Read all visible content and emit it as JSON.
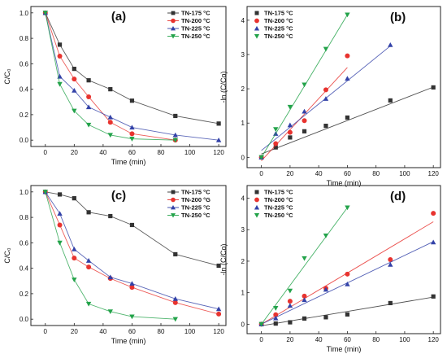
{
  "chart_data": [
    {
      "panel_label": "(a)",
      "type": "line",
      "xlabel": "Time (min)",
      "ylabel": "C/C₀",
      "xlim": [
        -10,
        125
      ],
      "ylim": [
        -0.05,
        1.05
      ],
      "xticks": [
        0,
        20,
        40,
        60,
        80,
        100,
        120
      ],
      "yticks": [
        0.0,
        0.2,
        0.4,
        0.6,
        0.8,
        1.0
      ],
      "tick_decimals": 1,
      "legend_position": "top-right",
      "series": [
        {
          "name": "TN-175 °C",
          "color": "#333333",
          "marker": "square",
          "x": [
            0,
            10,
            20,
            30,
            45,
            60,
            90,
            120
          ],
          "y": [
            1.0,
            0.75,
            0.56,
            0.47,
            0.4,
            0.31,
            0.19,
            0.13
          ]
        },
        {
          "name": "TN-200 °C",
          "color": "#e8332f",
          "marker": "circle",
          "x": [
            0,
            10,
            20,
            30,
            45,
            60,
            90
          ],
          "y": [
            1.0,
            0.66,
            0.48,
            0.34,
            0.14,
            0.05,
            0.0
          ]
        },
        {
          "name": "TN-225 °C",
          "color": "#3342a8",
          "marker": "triangle-up",
          "x": [
            0,
            10,
            20,
            30,
            45,
            60,
            90,
            120
          ],
          "y": [
            1.0,
            0.5,
            0.39,
            0.26,
            0.18,
            0.1,
            0.04,
            0.0
          ]
        },
        {
          "name": "TN-250 °C",
          "color": "#23a34a",
          "marker": "triangle-down",
          "x": [
            0,
            10,
            20,
            30,
            45,
            60,
            90
          ],
          "y": [
            1.0,
            0.44,
            0.23,
            0.12,
            0.04,
            0.01,
            0.0
          ]
        }
      ]
    },
    {
      "panel_label": "(b)",
      "type": "scatter",
      "xlabel": "Time (min)",
      "ylabel": "-ln (C/Co)",
      "xlim": [
        -10,
        125
      ],
      "ylim": [
        -0.3,
        4.4
      ],
      "xticks": [
        0,
        20,
        40,
        60,
        80,
        100,
        120
      ],
      "yticks": [
        0,
        1,
        2,
        3,
        4
      ],
      "tick_decimals": 0,
      "legend_position": "top-left",
      "series": [
        {
          "name": "TN-175 °C",
          "color": "#333333",
          "marker": "square",
          "x": [
            0,
            10,
            20,
            30,
            45,
            60,
            90,
            120
          ],
          "y": [
            0.0,
            0.29,
            0.58,
            0.76,
            0.92,
            1.16,
            1.66,
            2.04
          ],
          "fit": [
            [
              0,
              0.1
            ],
            [
              120,
              2.05
            ]
          ]
        },
        {
          "name": "TN-200 °C",
          "color": "#e8332f",
          "marker": "circle",
          "x": [
            0,
            10,
            20,
            30,
            45,
            60
          ],
          "y": [
            0.0,
            0.4,
            0.73,
            1.07,
            1.97,
            2.96
          ],
          "fit": [
            [
              0,
              -0.1
            ],
            [
              60,
              2.62
            ]
          ]
        },
        {
          "name": "TN-225 °C",
          "color": "#3342a8",
          "marker": "triangle-up",
          "x": [
            0,
            10,
            20,
            30,
            45,
            60,
            90
          ],
          "y": [
            0.0,
            0.69,
            0.94,
            1.34,
            1.71,
            2.3,
            3.28
          ],
          "fit": [
            [
              0,
              0.2
            ],
            [
              90,
              3.25
            ]
          ]
        },
        {
          "name": "TN-250 °C",
          "color": "#23a34a",
          "marker": "triangle-down",
          "x": [
            0,
            10,
            20,
            30,
            45,
            60
          ],
          "y": [
            0.0,
            0.82,
            1.47,
            2.12,
            3.16,
            4.16
          ],
          "fit": [
            [
              0,
              0.0
            ],
            [
              60,
              4.16
            ]
          ]
        }
      ]
    },
    {
      "panel_label": "(c)",
      "type": "line",
      "xlabel": "Time (min)",
      "ylabel": "C/C₀",
      "xlim": [
        -10,
        125
      ],
      "ylim": [
        -0.05,
        1.05
      ],
      "xticks": [
        0,
        20,
        40,
        60,
        80,
        100,
        120
      ],
      "yticks": [
        0.0,
        0.2,
        0.4,
        0.6,
        0.8,
        1.0
      ],
      "tick_decimals": 1,
      "legend_position": "top-right",
      "series": [
        {
          "name": "TN-175 °C",
          "color": "#333333",
          "marker": "square",
          "x": [
            0,
            10,
            20,
            30,
            45,
            60,
            90,
            120
          ],
          "y": [
            1.0,
            0.98,
            0.95,
            0.84,
            0.81,
            0.74,
            0.51,
            0.42
          ]
        },
        {
          "name": "TN-200 °G",
          "color": "#e8332f",
          "marker": "circle",
          "x": [
            0,
            10,
            20,
            30,
            45,
            60,
            90,
            120
          ],
          "y": [
            1.0,
            0.74,
            0.48,
            0.41,
            0.32,
            0.25,
            0.13,
            0.04
          ]
        },
        {
          "name": "TN-225 °C",
          "color": "#3342a8",
          "marker": "triangle-up",
          "x": [
            0,
            10,
            20,
            30,
            45,
            60,
            90,
            120
          ],
          "y": [
            1.0,
            0.83,
            0.55,
            0.46,
            0.33,
            0.28,
            0.16,
            0.08
          ]
        },
        {
          "name": "TN-250 °C",
          "color": "#23a34a",
          "marker": "triangle-down",
          "x": [
            0,
            10,
            20,
            30,
            45,
            60,
            90
          ],
          "y": [
            1.0,
            0.6,
            0.31,
            0.12,
            0.06,
            0.02,
            0.0
          ]
        }
      ]
    },
    {
      "panel_label": "(d)",
      "type": "scatter",
      "xlabel": "Time (min)",
      "ylabel": "-ln (C/Co)",
      "xlim": [
        -10,
        125
      ],
      "ylim": [
        -0.3,
        4.4
      ],
      "xticks": [
        0,
        20,
        40,
        60,
        80,
        100,
        120
      ],
      "yticks": [
        0,
        1,
        2,
        3,
        4
      ],
      "tick_decimals": 0,
      "legend_position": "top-left",
      "series": [
        {
          "name": "TN-175 °C",
          "color": "#333333",
          "marker": "square",
          "x": [
            0,
            10,
            20,
            30,
            45,
            60,
            90,
            120
          ],
          "y": [
            0.0,
            0.02,
            0.06,
            0.18,
            0.22,
            0.31,
            0.67,
            0.88
          ],
          "fit": [
            [
              0,
              -0.05
            ],
            [
              120,
              0.86
            ]
          ]
        },
        {
          "name": "TN-200 °C",
          "color": "#e8332f",
          "marker": "circle",
          "x": [
            0,
            10,
            20,
            30,
            45,
            60,
            90,
            120
          ],
          "y": [
            0.0,
            0.3,
            0.73,
            0.89,
            1.14,
            1.59,
            2.05,
            3.52
          ],
          "fit": [
            [
              0,
              0.0
            ],
            [
              120,
              3.25
            ]
          ]
        },
        {
          "name": "TN-225 °C",
          "color": "#3342a8",
          "marker": "triangle-up",
          "x": [
            0,
            10,
            20,
            30,
            45,
            60,
            90,
            120
          ],
          "y": [
            0.0,
            0.19,
            0.59,
            0.77,
            1.1,
            1.27,
            1.89,
            2.6
          ],
          "fit": [
            [
              0,
              0.0
            ],
            [
              120,
              2.62
            ]
          ]
        },
        {
          "name": "TN-250 °C",
          "color": "#23a34a",
          "marker": "triangle-down",
          "x": [
            0,
            10,
            20,
            30,
            45,
            60
          ],
          "y": [
            0.0,
            0.51,
            1.06,
            2.09,
            2.81,
            3.7
          ],
          "fit": [
            [
              0,
              0.0
            ],
            [
              60,
              3.7
            ]
          ]
        }
      ]
    }
  ]
}
